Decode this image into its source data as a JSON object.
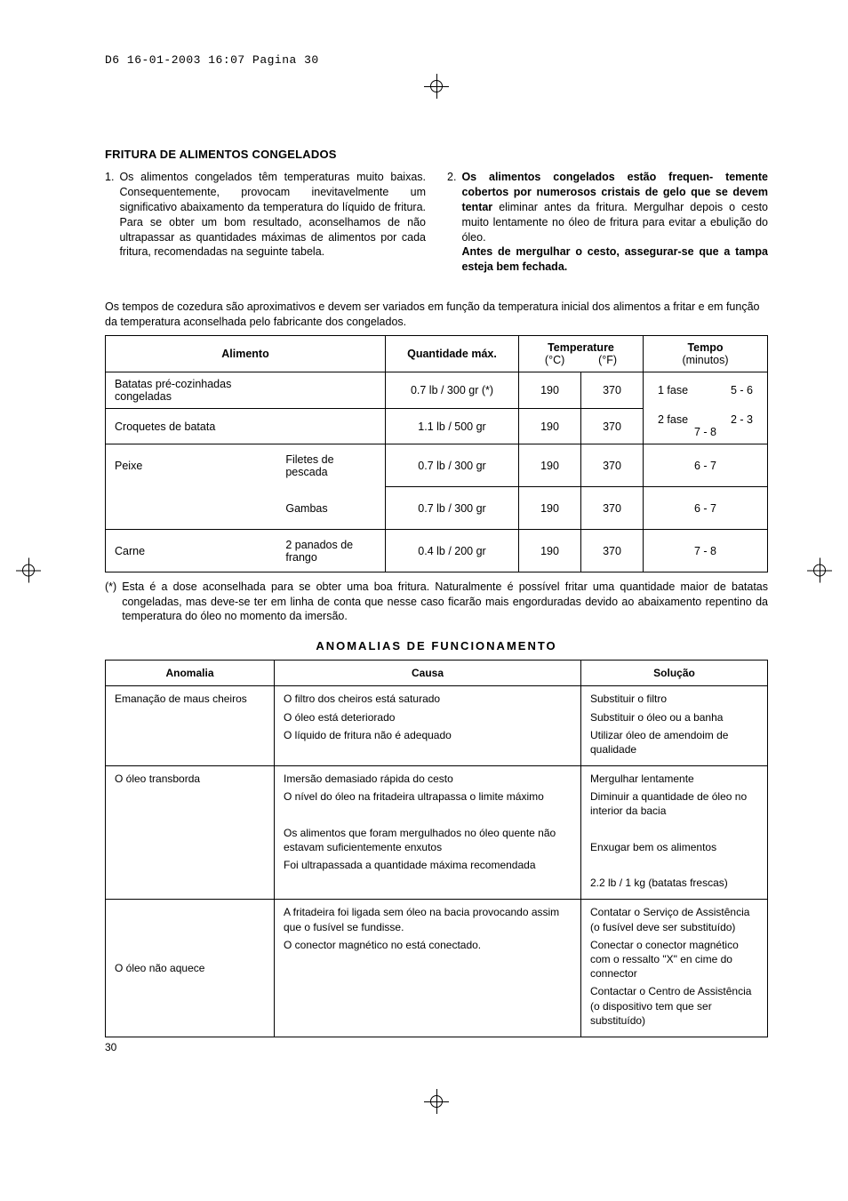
{
  "header_line": "D6  16-01-2003  16:07  Pagina 30",
  "section_title": "FRITURA DE ALIMENTOS CONGELADOS",
  "left_item_num": "1.",
  "left_item_text": "Os alimentos congelados têm temperaturas muito baixas. Consequentemente, provocam inevitavelmente um significativo abaixamento da temperatura do líquido de fritura. Para se obter um bom resultado, aconselhamos de não ultrapassar as quantidades máximas de alimentos por cada fritura, recomendadas na seguinte tabela.",
  "right_item_num": "2.",
  "right_bold_1": "Os alimentos congelados estão frequen- temente cobertos por numerosos cristais de gelo que se devem tentar",
  "right_plain_1": " eliminar antes da fritura. Mergulhar depois o cesto muito lentamente no óleo de fritura para evitar a ebulição do óleo.",
  "right_bold_2": "Antes de mergulhar o cesto, assegurar-se que a tampa esteja bem fechada.",
  "intro_para": "Os tempos de cozedura são aproximativos e devem ser variados em função da temperatura inicial dos alimentos a fritar e em função da temperatura aconselhada pelo fabricante dos congelados.",
  "t1": {
    "h_alimento": "Alimento",
    "h_qty": "Quantidade máx.",
    "h_temp": "Temperature",
    "h_temp_c": "(°C)",
    "h_temp_f": "(°F)",
    "h_tempo": "Tempo",
    "h_tempo_sub": "(minutos)",
    "rows": [
      {
        "alim_l": "Batatas pré-cozinhadas congeladas",
        "alim_r": "",
        "qty": "0.7 lb / 300 gr (*)",
        "c": "190",
        "f": "370",
        "tempo_rows": [
          [
            "1 fase",
            "5 - 6"
          ]
        ]
      },
      {
        "alim_l": "Croquetes de batata",
        "alim_r": "",
        "qty": "1.1 lb / 500 gr",
        "c": "190",
        "f": "370",
        "tempo_rows": [
          [
            "2 fase",
            "2 - 3"
          ],
          [
            "",
            "7 - 8"
          ]
        ]
      },
      {
        "alim_l": "Peixe",
        "alim_r": "Filetes de pescada",
        "qty": "0.7 lb / 300 gr",
        "c": "190",
        "f": "370",
        "tempo_rows": [
          [
            "",
            "6 - 7"
          ]
        ]
      },
      {
        "alim_l": "",
        "alim_r": "Gambas",
        "qty": "0.7 lb / 300 gr",
        "c": "190",
        "f": "370",
        "tempo_rows": [
          [
            "",
            "6 - 7"
          ]
        ]
      },
      {
        "alim_l": "Carne",
        "alim_r": "2 panados de frango",
        "qty": "0.4 lb / 200 gr",
        "c": "190",
        "f": "370",
        "tempo_rows": [
          [
            "",
            "7 - 8"
          ]
        ]
      }
    ]
  },
  "footnote_mark": "(*)",
  "footnote_text": "Esta é a dose aconselhada para se obter uma boa fritura. Naturalmente é possível fritar uma quantidade maior de batatas congeladas, mas deve-se ter em linha de conta que nesse caso ficarão mais engorduradas devido ao abaixamento repentino da temperatura do óleo no momento da imersão.",
  "anomalias_title": "ANOMALIAS  DE  FUNCIONAMENTO",
  "t2": {
    "h1": "Anomalia",
    "h2": "Causa",
    "h3": "Solução",
    "rows": [
      {
        "a": "Emanação de maus cheiros",
        "c": [
          "O filtro dos cheiros está saturado",
          "O óleo está deteriorado",
          "O líquido de fritura não é adequado"
        ],
        "s": [
          "Substituir o filtro",
          "Substituir o óleo ou a banha",
          "Utilizar óleo de amendoim de qualidade"
        ]
      },
      {
        "a": "O óleo transborda",
        "c": [
          "Imersão demasiado rápida do cesto",
          "O nível do óleo na fritadeira ultrapassa o limite máximo",
          "",
          "Os alimentos que foram mergulhados no óleo quente não estavam suficientemente enxutos",
          "Foi ultrapassada a quantidade máxima recomendada"
        ],
        "s": [
          "Mergulhar lentamente",
          "Diminuir a quantidade de óleo no interior da bacia",
          "",
          "Enxugar bem os alimentos",
          "",
          "2.2 lb / 1 kg (batatas frescas)"
        ]
      },
      {
        "a": "O óleo não aquece",
        "c": [
          "A fritadeira foi ligada sem óleo na bacia provocando assim que o fusível se fundisse.",
          "O conector magnético no está conectado."
        ],
        "s": [
          "Contatar o Serviço de Assistência (o fusível deve ser substituído)",
          "Conectar o conector magnético com o ressalto \"X\" en cime do connector",
          "Contactar o Centro de Assistência (o dispositivo tem que ser substituído)"
        ]
      }
    ]
  },
  "page_num": "30"
}
